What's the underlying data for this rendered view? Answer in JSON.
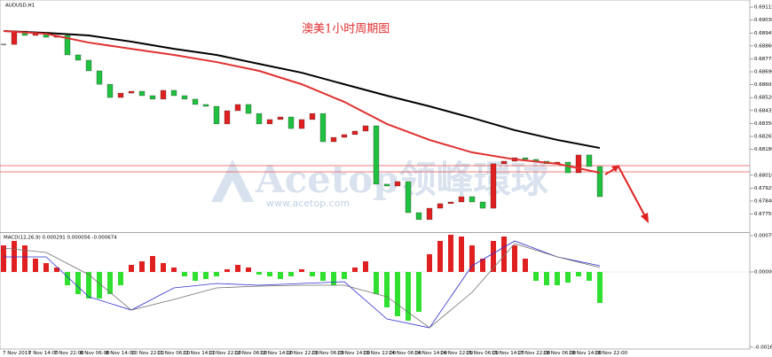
{
  "window": {
    "symbol_label": "AUDUSD,H1"
  },
  "annotation": "澳美1小时周期图",
  "watermark": {
    "brand": "Acetop领峰環球",
    "url": "www.acetop.com"
  },
  "time_axis": [
    "7 Nov 2019",
    "7 Nov 14:00",
    "7 Nov 22:00",
    "8 Nov 06:00",
    "8 Nov 14:00",
    "10 Nov 22:00",
    "11 Nov 06:00",
    "11 Nov 14:00",
    "11 Nov 22:00",
    "12 Nov 06:00",
    "12 Nov 14:00",
    "12 Nov 22:00",
    "13 Nov 06:00",
    "13 Nov 14:00",
    "13 Nov 22:00",
    "14 Nov 06:00",
    "14 Nov 14:00",
    "14 Nov 22:00",
    "15 Nov 06:00",
    "15 Nov 14:00",
    "17 Nov 22:00",
    "18 Nov 06:00",
    "18 Nov 14:00",
    "18 Nov 22:00"
  ],
  "chart_data": [
    {
      "type": "candlestick",
      "closes": [
        0.6887,
        0.68958,
        0.68929,
        0.6894,
        0.68917,
        0.68929,
        0.68801,
        0.68766,
        0.68696,
        0.68608,
        0.68521,
        0.6855,
        0.68562,
        0.68533,
        0.6851,
        0.68568,
        0.68533,
        0.6851,
        0.68475,
        0.68463,
        0.68347,
        0.68434,
        0.68475,
        0.68416,
        0.68347,
        0.68376,
        0.68393,
        0.68317,
        0.68376,
        0.68416,
        0.6823,
        0.68259,
        0.68277,
        0.683,
        0.68335,
        0.67951,
        0.67939,
        0.67968,
        0.67764,
        0.67718,
        0.67793,
        0.67823,
        0.67834,
        0.67869,
        0.67834,
        0.67793,
        0.68085,
        0.68102,
        0.68125,
        0.68114,
        0.68102,
        0.68085,
        0.68096,
        0.68026,
        0.68143,
        0.68067,
        0.67869
      ],
      "up_color": "#e02020",
      "down_color": "#20c040",
      "ma_index": [
        0,
        4,
        8,
        12,
        16,
        20,
        24,
        28,
        32,
        36,
        40,
        44,
        48,
        52,
        56
      ],
      "series": [
        {
          "color": "#000000",
          "values": [
            0.68958,
            0.68946,
            0.68929,
            0.68888,
            0.68841,
            0.68801,
            0.68742,
            0.68684,
            0.68608,
            0.68533,
            0.68463,
            0.68387,
            0.68306,
            0.68242,
            0.68189
          ]
        },
        {
          "color": "#e03030",
          "values": [
            0.68958,
            0.6894,
            0.68882,
            0.68841,
            0.68801,
            0.68754,
            0.68696,
            0.68608,
            0.68492,
            0.68347,
            0.68242,
            0.6816,
            0.68114,
            0.68085,
            0.68026
          ]
        }
      ],
      "levels": [
        0.68073,
        0.68032
      ],
      "ylim": [
        0.67636,
        0.69162
      ],
      "yticks": [
        {
          "value": 0.69115,
          "label": "0.69115"
        },
        {
          "value": 0.6903,
          "label": "0.69030"
        },
        {
          "value": 0.68945,
          "label": "0.68945"
        },
        {
          "value": 0.6886,
          "label": "0.68860"
        },
        {
          "value": 0.68775,
          "label": "0.68775"
        },
        {
          "value": 0.6869,
          "label": "0.68690"
        },
        {
          "value": 0.68605,
          "label": "0.68605"
        },
        {
          "value": 0.6852,
          "label": "0.68520"
        },
        {
          "value": 0.68435,
          "label": "0.68435"
        },
        {
          "value": 0.6835,
          "label": "0.68350"
        },
        {
          "value": 0.68265,
          "label": "0.68265"
        },
        {
          "value": 0.6818,
          "label": "0.68180"
        },
        {
          "value": 0.6801,
          "label": "0.68010"
        },
        {
          "value": 0.67925,
          "label": "0.67925"
        },
        {
          "value": 0.6784,
          "label": "0.67840"
        },
        {
          "value": 0.67755,
          "label": "0.67755"
        }
      ]
    },
    {
      "type": "macd",
      "title": "MACD(12,26,9) 0.000291 0.000056 -0.000674",
      "histogram": [
        0.000585,
        0.000683,
        0.000585,
        0.000293,
        0.000195,
        9.8e-05,
        -0.000293,
        -0.000488,
        -0.000585,
        -0.000585,
        -0.000488,
        -0.000293,
        0.000156,
        0.000234,
        0.000351,
        0.000195,
        9.8e-05,
        -9.8e-05,
        -0.000195,
        -0.000156,
        -9.8e-05,
        5.9e-05,
        0.000156,
        9.8e-05,
        -5.9e-05,
        -9.8e-05,
        -0.000156,
        -9.8e-05,
        5.9e-05,
        -9.8e-05,
        -0.000195,
        -0.000293,
        -0.000156,
        9.8e-05,
        0.000234,
        -0.000488,
        -0.00078,
        -0.000975,
        -0.001073,
        -0.000878,
        0.00039,
        0.000683,
        0.000819,
        0.00078,
        0.000585,
        0.000293,
        0.000683,
        0.00078,
        0.000585,
        0.000293,
        -0.000195,
        -0.000293,
        -0.000293,
        -0.000234,
        -9.8e-05,
        -0.000195,
        -0.000683
      ],
      "pos_color": "#e02020",
      "neg_color": "#30e030",
      "line_index": [
        0,
        4,
        8,
        12,
        16,
        20,
        24,
        28,
        32,
        36,
        40,
        44,
        48,
        52,
        56
      ],
      "series": [
        {
          "color": "#3030d0",
          "values": [
            0.000332,
            0.000332,
            -0.000546,
            -0.000839,
            -0.000351,
            -0.000254,
            -0.000293,
            -0.000254,
            -0.000215,
            -0.001034,
            -0.001229,
            0.000137,
            0.000683,
            0.000332,
            0.000137
          ]
        },
        {
          "color": "#707070",
          "values": [
            0.000527,
            0.000429,
            -5.9e-05,
            -0.000839,
            -0.000605,
            -0.000351,
            -0.000312,
            -0.000293,
            -0.000293,
            -0.000546,
            -0.001229,
            -0.000449,
            0.000624,
            0.000332,
            9.8e-05
          ]
        }
      ],
      "ylim": [
        -0.001697,
        0.000858
      ],
      "yticks": [
        {
          "value": 0.000799,
          "label": "0.000799"
        },
        {
          "value": 0,
          "label": "0.000000"
        },
        {
          "value": -0.001655,
          "label": "-0.001655"
        }
      ]
    }
  ]
}
